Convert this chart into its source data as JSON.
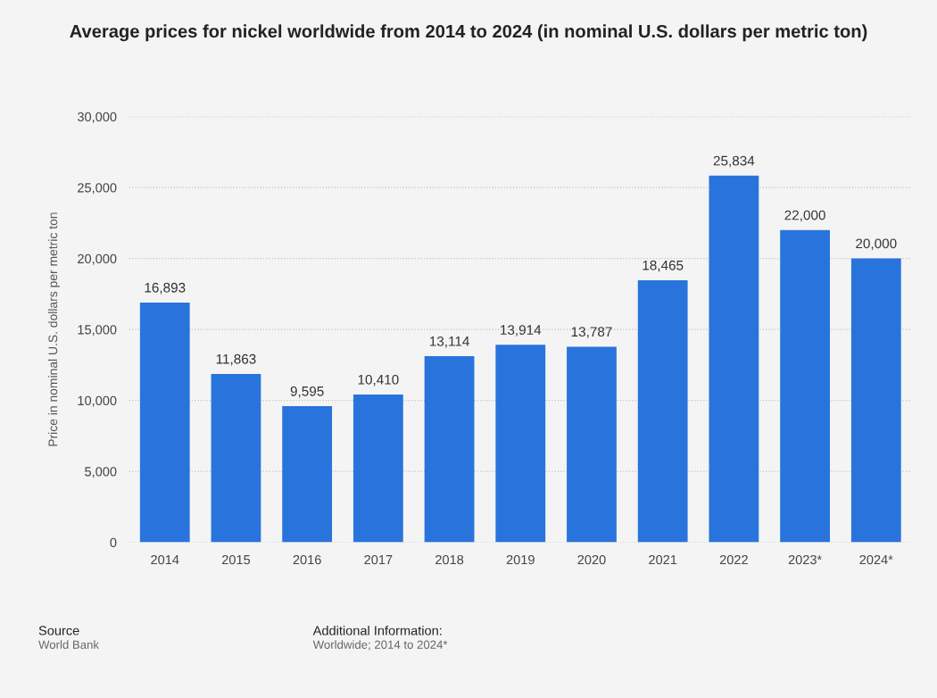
{
  "chart_data": {
    "type": "bar",
    "title": "Average prices for nickel worldwide from 2014 to 2024 (in nominal U.S. dollars per metric ton)",
    "ylabel": "Price in nominal U.S. dollars per metric ton",
    "categories": [
      "2014",
      "2015",
      "2016",
      "2017",
      "2018",
      "2019",
      "2020",
      "2021",
      "2022",
      "2023*",
      "2024*"
    ],
    "values": [
      16893,
      11863,
      9595,
      10410,
      13114,
      13914,
      13787,
      18465,
      25834,
      22000,
      20000
    ],
    "color": "#2874dc",
    "ylim": [
      0,
      30000
    ],
    "yticks": [
      {
        "value": 0,
        "label": "0"
      },
      {
        "value": 5000,
        "label": "5,000"
      },
      {
        "value": 10000,
        "label": "10,000"
      },
      {
        "value": 15000,
        "label": "15,000"
      },
      {
        "value": 20000,
        "label": "20,000"
      },
      {
        "value": 25000,
        "label": "25,000"
      },
      {
        "value": 30000,
        "label": "30,000"
      }
    ],
    "grid": "y",
    "value_labels": [
      "16,893",
      "11,863",
      "9,595",
      "10,410",
      "13,114",
      "13,914",
      "13,787",
      "18,465",
      "25,834",
      "22,000",
      "20,000"
    ],
    "annotations": [
      "Source",
      "World Bank",
      "Additional Information:",
      "Worldwide; 2014 to 2024*"
    ]
  }
}
